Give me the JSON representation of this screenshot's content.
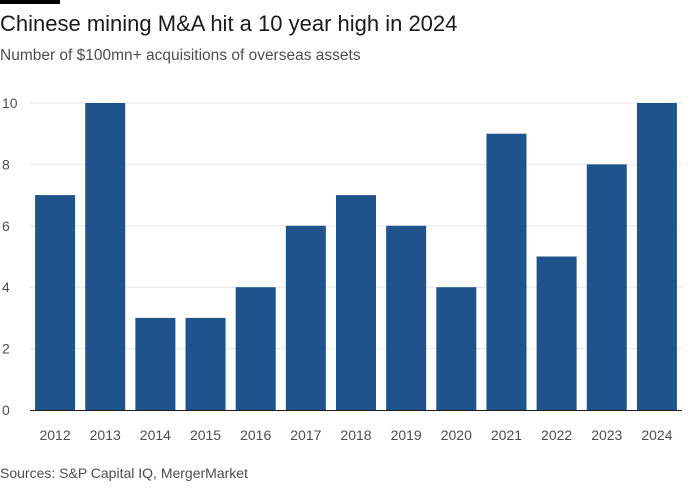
{
  "title": "Chinese mining M&A hit a 10 year high in 2024",
  "subtitle": "Number of $100mn+ acquisitions of overseas assets",
  "source": "Sources: S&P Capital IQ, MergerMarket",
  "colors": {
    "bar": "#1e538c",
    "grid": "#e6e6e6",
    "axis": "#1a1a1a",
    "tick_text": "#4d4d4d",
    "accent_bar": "#000000"
  },
  "chart_data": {
    "type": "bar",
    "categories": [
      "2012",
      "2013",
      "2014",
      "2015",
      "2016",
      "2017",
      "2018",
      "2019",
      "2020",
      "2021",
      "2022",
      "2023",
      "2024"
    ],
    "values": [
      7,
      10,
      3,
      3,
      4,
      6,
      7,
      6,
      4,
      9,
      5,
      8,
      10
    ],
    "ylim": [
      0,
      10
    ],
    "yticks": [
      0,
      2,
      4,
      6,
      8,
      10
    ],
    "xlabel": "",
    "ylabel": "",
    "grid": true,
    "legend": "none"
  }
}
